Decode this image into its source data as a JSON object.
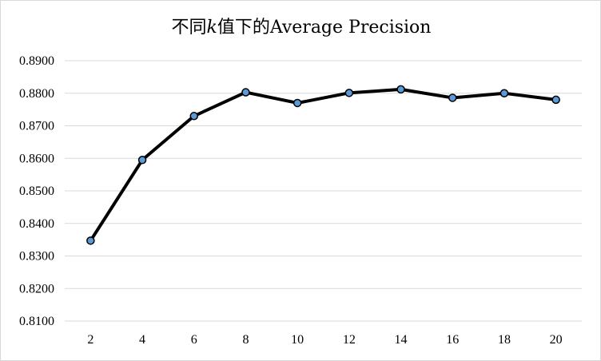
{
  "chart_data": {
    "type": "line",
    "title_parts": {
      "prefix": "不同",
      "italic": "k",
      "suffix": "值下的Average Precision"
    },
    "xlabel": "",
    "ylabel": "",
    "categories": [
      "2",
      "4",
      "6",
      "8",
      "10",
      "12",
      "14",
      "16",
      "18",
      "20"
    ],
    "series": [
      {
        "values": [
          0.8347,
          0.8595,
          0.873,
          0.8803,
          0.877,
          0.8801,
          0.8812,
          0.8786,
          0.88,
          0.878
        ]
      }
    ],
    "ylim": [
      0.81,
      0.89
    ],
    "yticks": [
      0.81,
      0.82,
      0.83,
      0.84,
      0.85,
      0.86,
      0.87,
      0.88,
      0.89
    ],
    "ytick_labels": [
      "0.8100",
      "0.8200",
      "0.8300",
      "0.8400",
      "0.8500",
      "0.8600",
      "0.8700",
      "0.8800",
      "0.8900"
    ],
    "grid": "horizontal",
    "legend": "none",
    "colors": {
      "line": "#000000",
      "marker_fill": "#5b9bd5",
      "grid": "#d9d9d9"
    }
  }
}
